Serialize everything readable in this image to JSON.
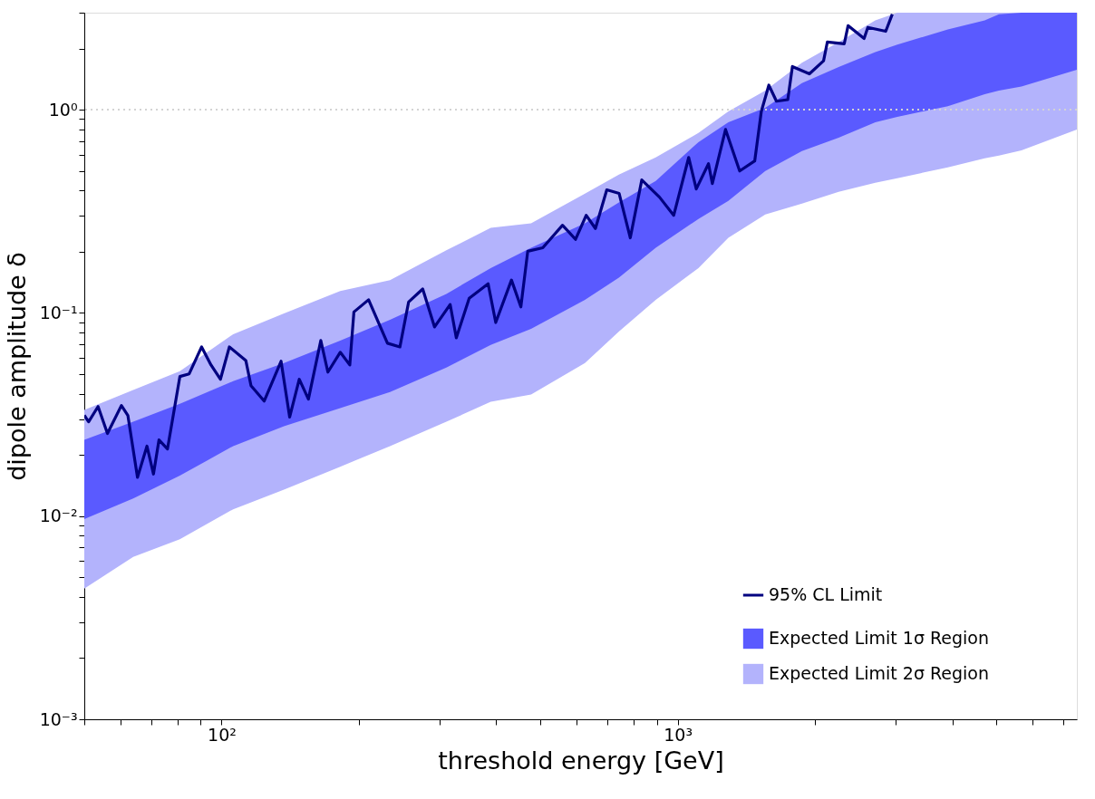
{
  "chart_data": {
    "type": "line",
    "xlabel": "threshold energy [GeV]",
    "ylabel": "dipole amplitude δ",
    "log": "xy",
    "grid": false,
    "legend": "bottom right",
    "xlim": [
      50,
      7500
    ],
    "ylim": [
      0.001,
      3
    ],
    "xticks": [
      {
        "value": 50,
        "label": null
      },
      {
        "value": 60,
        "label": null
      },
      {
        "value": 70,
        "label": null
      },
      {
        "value": 80,
        "label": null
      },
      {
        "value": 90,
        "label": null
      },
      {
        "value": 100,
        "label": "10²"
      },
      {
        "value": 200,
        "label": null
      },
      {
        "value": 300,
        "label": null
      },
      {
        "value": 400,
        "label": null
      },
      {
        "value": 500,
        "label": null
      },
      {
        "value": 600,
        "label": null
      },
      {
        "value": 700,
        "label": null
      },
      {
        "value": 800,
        "label": null
      },
      {
        "value": 900,
        "label": null
      },
      {
        "value": 1000,
        "label": "10³"
      },
      {
        "value": 2000,
        "label": null
      },
      {
        "value": 3000,
        "label": null
      },
      {
        "value": 4000,
        "label": null
      },
      {
        "value": 5000,
        "label": null
      },
      {
        "value": 6000,
        "label": null
      },
      {
        "value": 7000,
        "label": null
      }
    ],
    "yticks": [
      {
        "value": 0.001,
        "label": "10⁻³"
      },
      {
        "value": 0.002,
        "label": null
      },
      {
        "value": 0.003,
        "label": null
      },
      {
        "value": 0.004,
        "label": null
      },
      {
        "value": 0.005,
        "label": null
      },
      {
        "value": 0.006,
        "label": null
      },
      {
        "value": 0.007,
        "label": null
      },
      {
        "value": 0.008,
        "label": null
      },
      {
        "value": 0.009,
        "label": null
      },
      {
        "value": 0.01,
        "label": "10⁻²"
      },
      {
        "value": 0.02,
        "label": null
      },
      {
        "value": 0.03,
        "label": null
      },
      {
        "value": 0.04,
        "label": null
      },
      {
        "value": 0.05,
        "label": null
      },
      {
        "value": 0.06,
        "label": null
      },
      {
        "value": 0.07,
        "label": null
      },
      {
        "value": 0.08,
        "label": null
      },
      {
        "value": 0.09,
        "label": null
      },
      {
        "value": 0.1,
        "label": "10⁻¹"
      },
      {
        "value": 0.2,
        "label": null
      },
      {
        "value": 0.3,
        "label": null
      },
      {
        "value": 0.4,
        "label": null
      },
      {
        "value": 0.5,
        "label": null
      },
      {
        "value": 0.6,
        "label": null
      },
      {
        "value": 0.7,
        "label": null
      },
      {
        "value": 0.8,
        "label": null
      },
      {
        "value": 0.9,
        "label": null
      },
      {
        "value": 1,
        "label": "10⁰"
      },
      {
        "value": 2,
        "label": null
      },
      {
        "value": 3,
        "label": null
      }
    ],
    "ref_lines": [
      {
        "axis": "y",
        "value": 1,
        "color": "#d3d3d3",
        "line_style": "dotted"
      }
    ],
    "series": [
      {
        "name": "95% CL Limit",
        "color": "#000080",
        "x": [
          50,
          51.1,
          53.6,
          56.2,
          60.3,
          62.3,
          65.4,
          68.6,
          70.9,
          72.9,
          76.1,
          81.0,
          84.9,
          90.4,
          94.8,
          99.4,
          104,
          113,
          116,
          124,
          135,
          141,
          148,
          155,
          165,
          171,
          182,
          191,
          195,
          210,
          231,
          246,
          257,
          276,
          293,
          317,
          327,
          349,
          384,
          399,
          432,
          453,
          469,
          506,
          559,
          597,
          630,
          660,
          699,
          744,
          787,
          834,
          912,
          980,
          1057,
          1098,
          1168,
          1191,
          1273,
          1367,
          1475,
          1525,
          1584,
          1646,
          1743,
          1784,
          1944,
          2088,
          2128,
          2318,
          2363,
          2562,
          2611,
          2858,
          2954
        ],
        "values": [
          0.0313,
          0.0291,
          0.0346,
          0.0255,
          0.035,
          0.0313,
          0.0155,
          0.0221,
          0.0161,
          0.0237,
          0.0214,
          0.0486,
          0.0501,
          0.068,
          0.0554,
          0.0471,
          0.068,
          0.0583,
          0.0438,
          0.0368,
          0.0578,
          0.0307,
          0.0471,
          0.0376,
          0.0731,
          0.0511,
          0.064,
          0.0554,
          0.101,
          0.116,
          0.0709,
          0.068,
          0.113,
          0.131,
          0.0852,
          0.11,
          0.0753,
          0.118,
          0.139,
          0.0896,
          0.145,
          0.107,
          0.201,
          0.209,
          0.27,
          0.23,
          0.302,
          0.26,
          0.403,
          0.387,
          0.234,
          0.451,
          0.371,
          0.302,
          0.582,
          0.407,
          0.542,
          0.433,
          0.799,
          0.499,
          0.559,
          0.98,
          1.32,
          1.1,
          1.12,
          1.63,
          1.5,
          1.74,
          2.15,
          2.11,
          2.59,
          2.24,
          2.54,
          2.43,
          2.95
        ]
      },
      {
        "name": "Expected Limit 1σ Region",
        "type": "area",
        "color": "#5a5aff",
        "x": [
          50,
          64,
          81,
          106,
          137,
          182,
          234,
          311,
          389,
          477,
          626,
          743,
          895,
          1110,
          1291,
          1556,
          1872,
          2253,
          2711,
          3030,
          3910,
          4710,
          5060,
          5670,
          7500
        ],
        "values": [
          null,
          null,
          null,
          null,
          null,
          null,
          null,
          null,
          null,
          null,
          null,
          null,
          null,
          null,
          null,
          null,
          null,
          null,
          null,
          null,
          null,
          null,
          null,
          null,
          null
        ],
        "lower": [
          0.00966,
          0.0122,
          0.0158,
          0.0221,
          0.0277,
          0.034,
          0.0408,
          0.0538,
          0.0695,
          0.0834,
          0.116,
          0.149,
          0.209,
          0.29,
          0.356,
          0.499,
          0.625,
          0.728,
          0.867,
          0.921,
          1.04,
          1.19,
          1.24,
          1.3,
          1.57
        ],
        "upper": [
          0.0237,
          0.0291,
          0.0357,
          0.0461,
          0.0566,
          0.0731,
          0.0925,
          0.124,
          0.166,
          0.209,
          0.276,
          0.349,
          0.446,
          0.692,
          0.867,
          1.02,
          1.35,
          1.62,
          1.92,
          2.09,
          2.48,
          2.75,
          2.95,
          3,
          3
        ]
      },
      {
        "name": "Expected Limit 2σ Region",
        "type": "area",
        "color": "#b3b3fc",
        "x": [
          50,
          64,
          81,
          106,
          137,
          182,
          234,
          311,
          389,
          477,
          626,
          743,
          895,
          1110,
          1291,
          1556,
          1872,
          2253,
          2711,
          3030,
          3910,
          4710,
          5060,
          5670,
          7500
        ],
        "values": [
          null,
          null,
          null,
          null,
          null,
          null,
          null,
          null,
          null,
          null,
          null,
          null,
          null,
          null,
          null,
          null,
          null,
          null,
          null,
          null,
          null,
          null,
          null,
          null,
          null
        ],
        "lower": [
          0.0044,
          0.0063,
          0.0077,
          0.0108,
          0.0135,
          0.0175,
          0.0221,
          0.0291,
          0.0365,
          0.0396,
          0.0566,
          0.081,
          0.116,
          0.166,
          0.234,
          0.305,
          0.345,
          0.394,
          0.437,
          0.46,
          0.52,
          0.576,
          0.594,
          0.631,
          0.798
        ],
        "upper": [
          0.0333,
          0.0417,
          0.0516,
          0.0785,
          0.0993,
          0.128,
          0.145,
          0.203,
          0.262,
          0.276,
          0.386,
          0.479,
          0.582,
          0.767,
          0.98,
          1.24,
          1.7,
          2.15,
          2.75,
          3,
          3,
          3,
          3,
          3,
          3
        ]
      }
    ]
  }
}
